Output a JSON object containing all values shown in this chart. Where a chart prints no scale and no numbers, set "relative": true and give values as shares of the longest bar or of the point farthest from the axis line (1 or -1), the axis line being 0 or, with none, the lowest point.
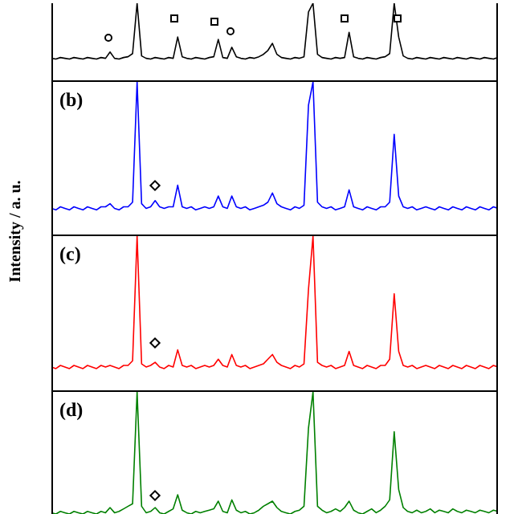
{
  "chart_data": [
    {
      "type": "line",
      "relative": true,
      "categories": [
        null,
        null,
        null,
        null,
        null,
        null,
        null,
        null,
        null,
        null,
        null,
        null,
        null,
        null,
        null,
        null,
        null,
        null,
        null,
        null,
        null,
        null,
        null,
        null,
        null,
        null,
        null,
        null,
        null,
        null,
        null,
        null,
        null,
        null,
        null,
        null,
        null,
        null,
        null,
        null,
        null,
        null,
        null,
        null,
        null,
        null,
        null,
        null,
        null,
        null,
        null,
        null,
        null,
        null,
        null,
        null,
        null,
        null,
        null,
        null,
        null,
        null,
        null,
        null,
        null,
        null,
        null,
        null,
        null,
        null,
        null,
        null,
        null,
        null,
        null,
        null,
        null,
        null,
        null,
        null,
        null,
        null,
        null,
        null,
        null,
        null,
        null,
        null,
        null,
        null,
        null,
        null,
        null,
        null,
        null,
        null,
        null,
        null,
        null,
        null
      ],
      "series": [
        {
          "color": "#000000",
          "values": [
            0.3,
            0.29,
            0.31,
            0.3,
            0.29,
            0.31,
            0.3,
            0.29,
            0.31,
            0.3,
            0.29,
            0.31,
            0.3,
            0.38,
            0.3,
            0.29,
            0.31,
            0.32,
            0.36,
            1,
            0.33,
            0.3,
            0.29,
            0.31,
            0.3,
            0.29,
            0.31,
            0.3,
            0.57,
            0.32,
            0.3,
            0.29,
            0.31,
            0.3,
            0.29,
            0.31,
            0.32,
            0.54,
            0.31,
            0.3,
            0.44,
            0.32,
            0.3,
            0.29,
            0.31,
            0.3,
            0.32,
            0.35,
            0.4,
            0.49,
            0.35,
            0.31,
            0.3,
            0.29,
            0.31,
            0.3,
            0.32,
            0.89,
            1,
            0.35,
            0.31,
            0.3,
            0.29,
            0.31,
            0.3,
            0.31,
            0.63,
            0.32,
            0.3,
            0.29,
            0.31,
            0.3,
            0.29,
            0.31,
            0.32,
            0.36,
            1,
            0.57,
            0.33,
            0.3,
            0.29,
            0.31,
            0.3,
            0.29,
            0.31,
            0.3,
            0.29,
            0.31,
            0.3,
            0.29,
            0.31,
            0.3,
            0.29,
            0.31,
            0.3,
            0.29,
            0.31,
            0.3,
            0.29,
            0.31
          ]
        }
      ]
    },
    {
      "type": "line",
      "relative": true,
      "title": "(b)",
      "ylabel": "Intensity / a. u.",
      "categories": [
        null,
        null,
        null,
        null,
        null,
        null,
        null,
        null,
        null,
        null,
        null,
        null,
        null,
        null,
        null,
        null,
        null,
        null,
        null,
        null,
        null,
        null,
        null,
        null,
        null,
        null,
        null,
        null,
        null,
        null,
        null,
        null,
        null,
        null,
        null,
        null,
        null,
        null,
        null,
        null,
        null,
        null,
        null,
        null,
        null,
        null,
        null,
        null,
        null,
        null,
        null,
        null,
        null,
        null,
        null,
        null,
        null,
        null,
        null,
        null,
        null,
        null,
        null,
        null,
        null,
        null,
        null,
        null,
        null,
        null,
        null,
        null,
        null,
        null,
        null,
        null,
        null,
        null,
        null,
        null,
        null,
        null,
        null,
        null,
        null,
        null,
        null,
        null,
        null,
        null,
        null,
        null,
        null,
        null,
        null,
        null,
        null,
        null,
        null,
        null
      ],
      "series": [
        {
          "color": "#0000ff",
          "values": [
            0.18,
            0.17,
            0.19,
            0.18,
            0.17,
            0.19,
            0.18,
            0.17,
            0.19,
            0.18,
            0.17,
            0.19,
            0.19,
            0.21,
            0.18,
            0.17,
            0.19,
            0.19,
            0.22,
            1,
            0.21,
            0.18,
            0.19,
            0.23,
            0.19,
            0.18,
            0.19,
            0.19,
            0.33,
            0.19,
            0.18,
            0.19,
            0.17,
            0.18,
            0.19,
            0.18,
            0.19,
            0.26,
            0.19,
            0.18,
            0.26,
            0.19,
            0.18,
            0.19,
            0.17,
            0.18,
            0.19,
            0.2,
            0.22,
            0.28,
            0.21,
            0.19,
            0.18,
            0.17,
            0.19,
            0.18,
            0.2,
            0.85,
            1,
            0.22,
            0.19,
            0.18,
            0.19,
            0.17,
            0.18,
            0.19,
            0.3,
            0.19,
            0.18,
            0.17,
            0.19,
            0.18,
            0.17,
            0.19,
            0.19,
            0.22,
            0.66,
            0.26,
            0.19,
            0.18,
            0.19,
            0.17,
            0.18,
            0.19,
            0.18,
            0.17,
            0.19,
            0.18,
            0.17,
            0.19,
            0.18,
            0.17,
            0.19,
            0.18,
            0.17,
            0.19,
            0.18,
            0.17,
            0.19,
            0.18
          ]
        }
      ]
    },
    {
      "type": "line",
      "relative": true,
      "title": "(c)",
      "categories": [
        null,
        null,
        null,
        null,
        null,
        null,
        null,
        null,
        null,
        null,
        null,
        null,
        null,
        null,
        null,
        null,
        null,
        null,
        null,
        null,
        null,
        null,
        null,
        null,
        null,
        null,
        null,
        null,
        null,
        null,
        null,
        null,
        null,
        null,
        null,
        null,
        null,
        null,
        null,
        null,
        null,
        null,
        null,
        null,
        null,
        null,
        null,
        null,
        null,
        null,
        null,
        null,
        null,
        null,
        null,
        null,
        null,
        null,
        null,
        null,
        null,
        null,
        null,
        null,
        null,
        null,
        null,
        null,
        null,
        null,
        null,
        null,
        null,
        null,
        null,
        null,
        null,
        null,
        null,
        null,
        null,
        null,
        null,
        null,
        null,
        null,
        null,
        null,
        null,
        null,
        null,
        null,
        null,
        null,
        null,
        null,
        null,
        null,
        null,
        null
      ],
      "series": [
        {
          "color": "#ff0000",
          "values": [
            0.16,
            0.15,
            0.17,
            0.16,
            0.15,
            0.17,
            0.16,
            0.15,
            0.17,
            0.16,
            0.15,
            0.17,
            0.16,
            0.17,
            0.16,
            0.15,
            0.17,
            0.17,
            0.2,
            1,
            0.18,
            0.16,
            0.17,
            0.19,
            0.16,
            0.15,
            0.17,
            0.16,
            0.27,
            0.17,
            0.16,
            0.17,
            0.15,
            0.16,
            0.17,
            0.16,
            0.17,
            0.21,
            0.17,
            0.16,
            0.24,
            0.17,
            0.16,
            0.17,
            0.15,
            0.16,
            0.17,
            0.18,
            0.21,
            0.24,
            0.19,
            0.17,
            0.16,
            0.15,
            0.17,
            0.16,
            0.18,
            0.66,
            1,
            0.19,
            0.17,
            0.16,
            0.17,
            0.15,
            0.16,
            0.17,
            0.26,
            0.17,
            0.16,
            0.15,
            0.17,
            0.16,
            0.15,
            0.17,
            0.17,
            0.21,
            0.63,
            0.26,
            0.17,
            0.16,
            0.17,
            0.15,
            0.16,
            0.17,
            0.16,
            0.15,
            0.17,
            0.16,
            0.15,
            0.17,
            0.16,
            0.15,
            0.17,
            0.16,
            0.15,
            0.17,
            0.16,
            0.15,
            0.17,
            0.16
          ]
        }
      ]
    },
    {
      "type": "line",
      "relative": true,
      "title": "(d)",
      "categories": [
        null,
        null,
        null,
        null,
        null,
        null,
        null,
        null,
        null,
        null,
        null,
        null,
        null,
        null,
        null,
        null,
        null,
        null,
        null,
        null,
        null,
        null,
        null,
        null,
        null,
        null,
        null,
        null,
        null,
        null,
        null,
        null,
        null,
        null,
        null,
        null,
        null,
        null,
        null,
        null,
        null,
        null,
        null,
        null,
        null,
        null,
        null,
        null,
        null,
        null,
        null,
        null,
        null,
        null,
        null,
        null,
        null,
        null,
        null,
        null,
        null,
        null,
        null,
        null,
        null,
        null,
        null,
        null,
        null,
        null,
        null,
        null,
        null,
        null,
        null,
        null,
        null,
        null,
        null,
        null,
        null,
        null,
        null,
        null,
        null,
        null,
        null,
        null,
        null,
        null,
        null,
        null,
        null,
        null,
        null,
        null,
        null,
        null,
        null,
        null
      ],
      "series": [
        {
          "color": "#008000",
          "values": [
            0.06,
            0.05,
            0.07,
            0.06,
            0.05,
            0.07,
            0.06,
            0.05,
            0.07,
            0.06,
            0.05,
            0.07,
            0.06,
            0.1,
            0.06,
            0.07,
            0.09,
            0.11,
            0.13,
            1,
            0.11,
            0.06,
            0.07,
            0.1,
            0.06,
            0.05,
            0.07,
            0.09,
            0.2,
            0.08,
            0.06,
            0.05,
            0.07,
            0.06,
            0.07,
            0.08,
            0.09,
            0.15,
            0.07,
            0.06,
            0.16,
            0.08,
            0.06,
            0.07,
            0.05,
            0.06,
            0.08,
            0.11,
            0.13,
            0.15,
            0.1,
            0.07,
            0.06,
            0.05,
            0.07,
            0.08,
            0.11,
            0.72,
            1,
            0.11,
            0.08,
            0.06,
            0.07,
            0.09,
            0.07,
            0.1,
            0.15,
            0.08,
            0.06,
            0.05,
            0.07,
            0.09,
            0.06,
            0.08,
            0.11,
            0.16,
            0.69,
            0.24,
            0.1,
            0.07,
            0.06,
            0.08,
            0.06,
            0.07,
            0.09,
            0.06,
            0.08,
            0.07,
            0.06,
            0.09,
            0.07,
            0.06,
            0.08,
            0.07,
            0.06,
            0.08,
            0.07,
            0.06,
            0.08,
            0.07
          ]
        }
      ]
    }
  ]
}
